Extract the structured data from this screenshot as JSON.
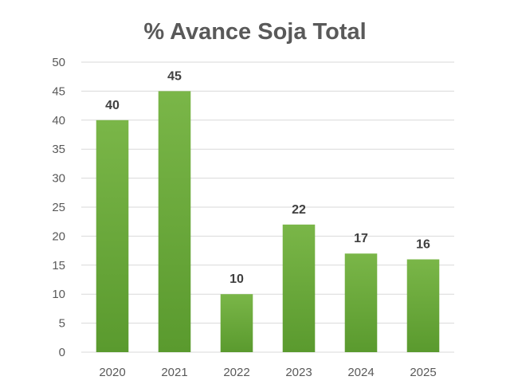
{
  "chart_data": {
    "type": "bar",
    "title": "% Avance Soja Total",
    "categories": [
      "2020",
      "2021",
      "2022",
      "2023",
      "2024",
      "2025"
    ],
    "values": [
      40,
      45,
      10,
      22,
      17,
      16
    ],
    "data_labels": [
      "40",
      "45",
      "10",
      "22",
      "17",
      "16"
    ],
    "y_ticks": [
      "0",
      "5",
      "10",
      "15",
      "20",
      "25",
      "30",
      "35",
      "40",
      "45",
      "50"
    ],
    "ylim": [
      0,
      50
    ],
    "xlabel": "",
    "ylabel": "",
    "grid": true,
    "legend": "none",
    "colors": {
      "bar_top": "#7ab648",
      "bar_bottom": "#5a9a2e",
      "grid": "#d9d9d9",
      "tick_label": "#595959",
      "data_label": "#404040",
      "title": "#595959"
    }
  }
}
